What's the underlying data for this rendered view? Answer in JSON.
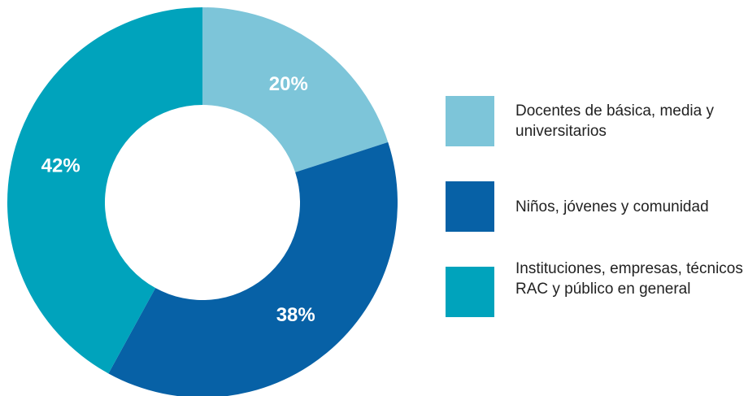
{
  "chart_data": {
    "type": "pie",
    "style": "donut",
    "title": "",
    "categories": [
      "Docentes de básica, media y universitarios",
      "Niños, jóvenes y comunidad",
      "Instituciones, empresas, técnicos RAC y público en general"
    ],
    "values": [
      20,
      38,
      42
    ],
    "value_labels": [
      "20%",
      "38%",
      "42%"
    ],
    "unit": "%",
    "colors": [
      "#7dc5d9",
      "#0761a6",
      "#00a3bc"
    ],
    "legend": {
      "placement": "right",
      "items": [
        {
          "label": "Docentes de básica, media y universitarios",
          "color": "#7dc5d9"
        },
        {
          "label": "Niños, jóvenes y comunidad",
          "color": "#0761a6"
        },
        {
          "label": "Instituciones, empresas, técnicos RAC y público en general",
          "color": "#00a3bc"
        }
      ]
    }
  }
}
